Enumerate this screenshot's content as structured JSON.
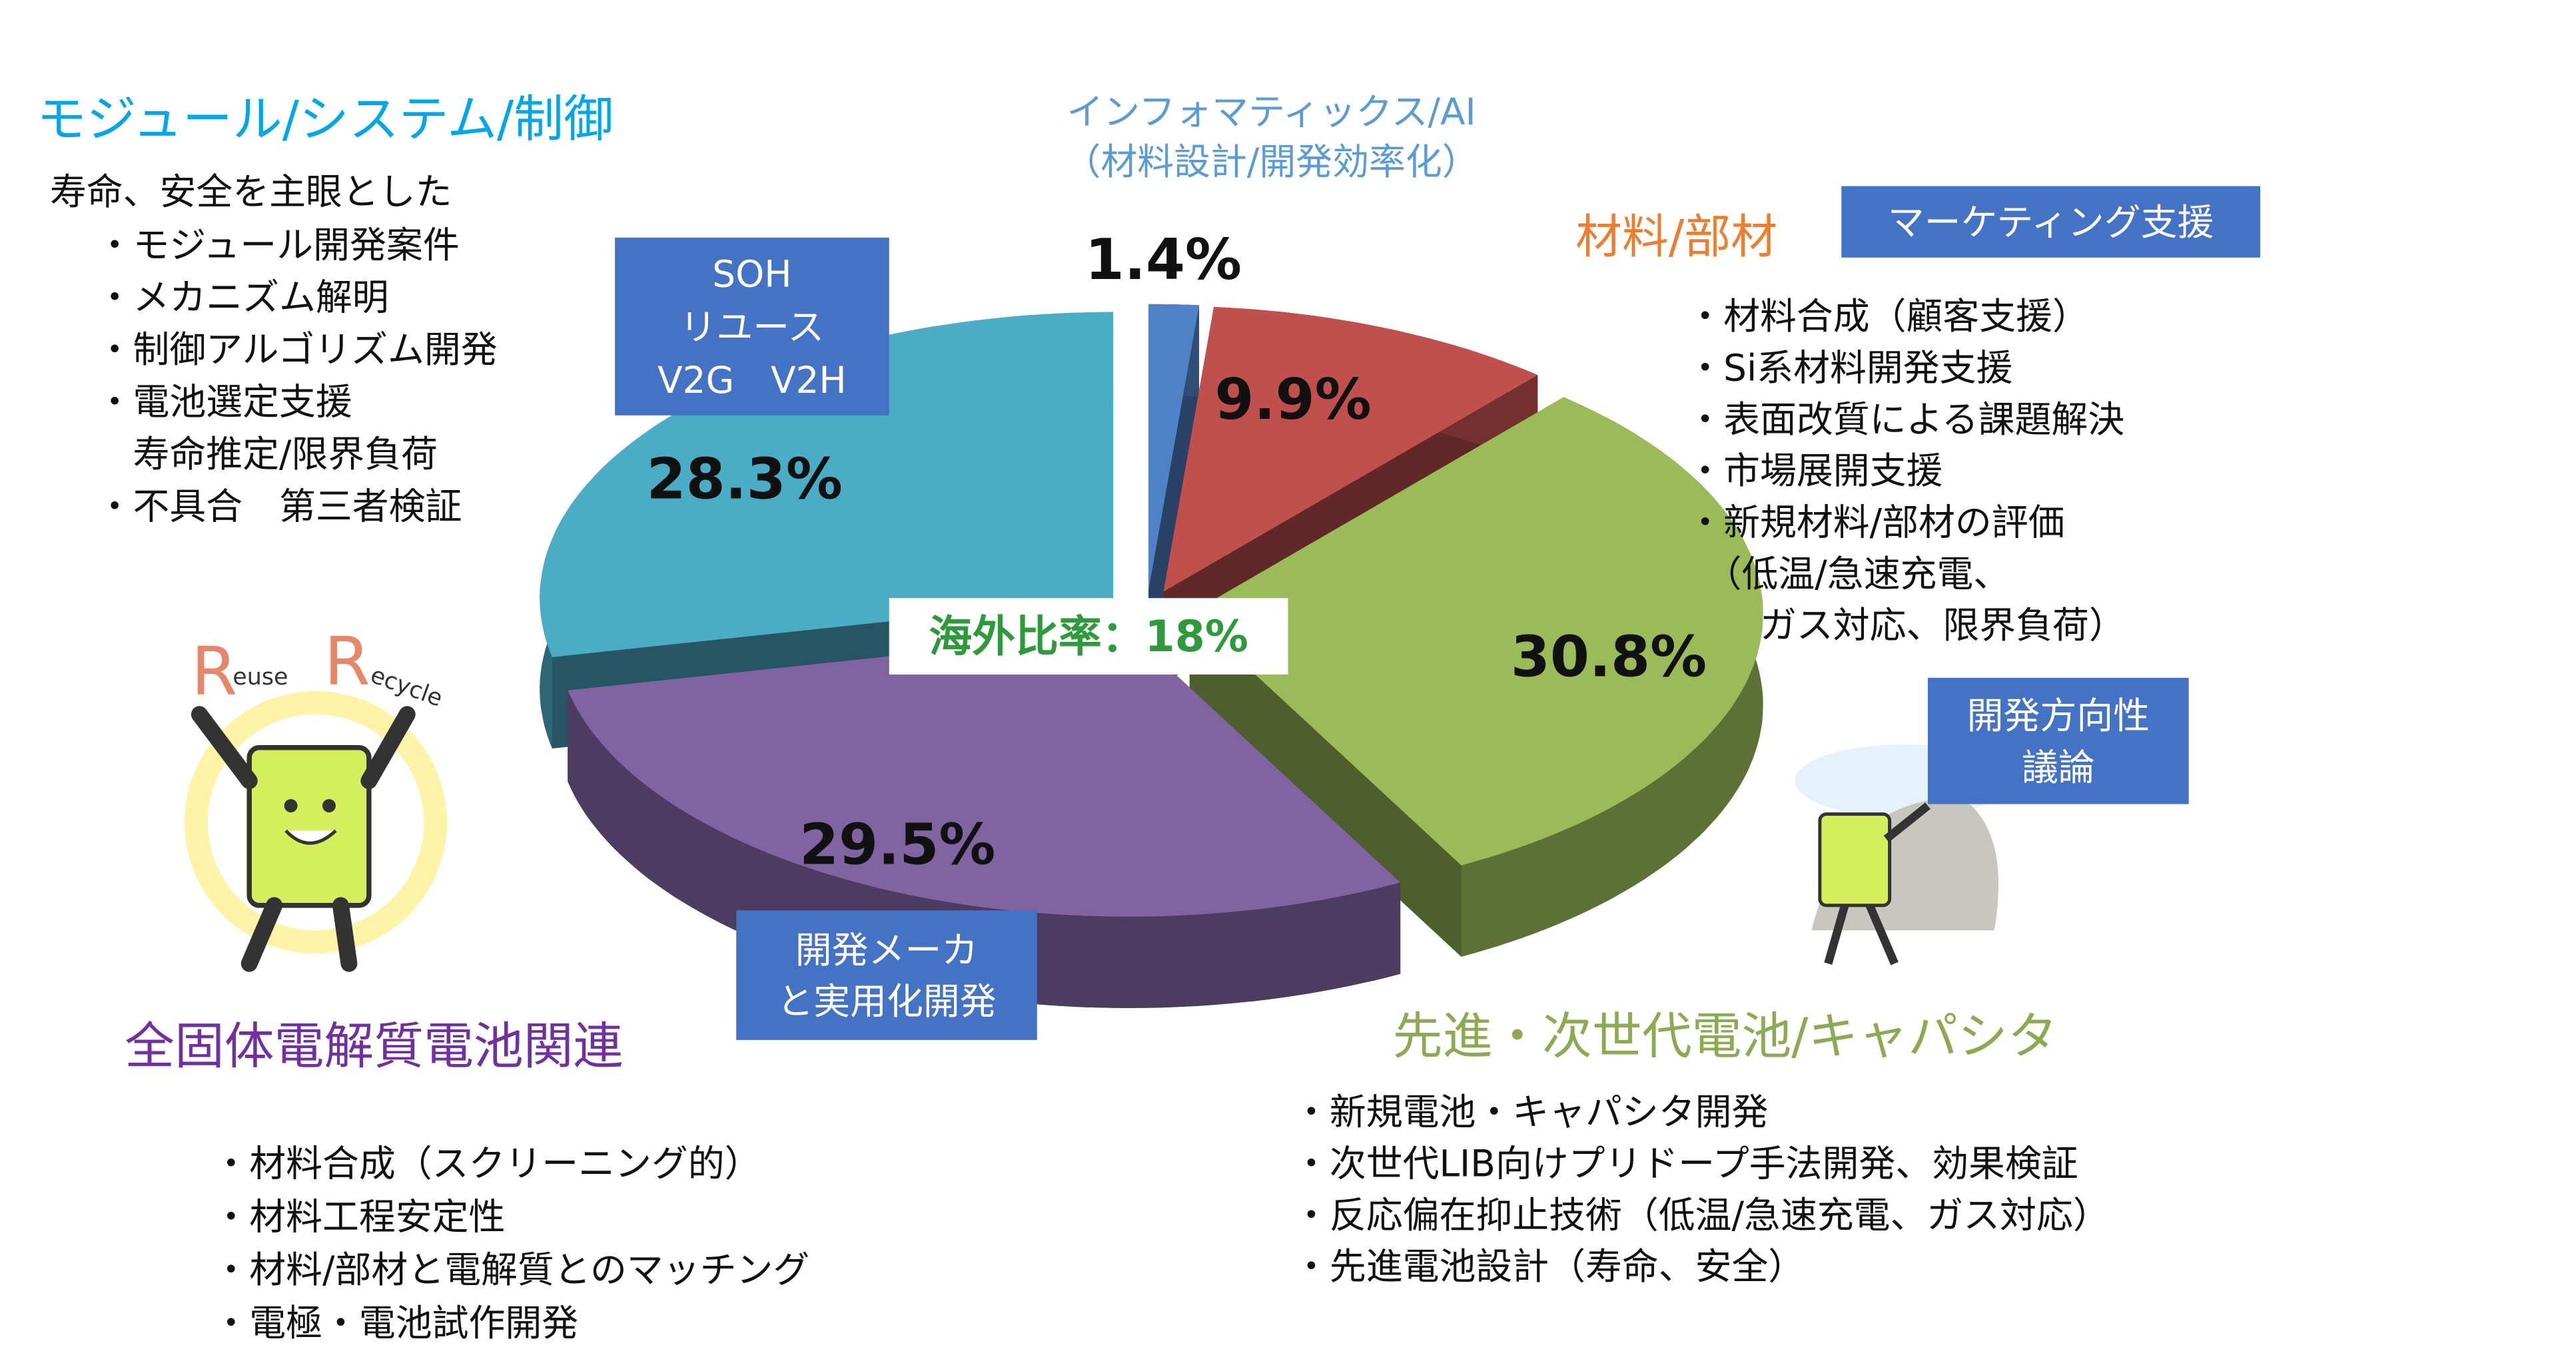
{
  "chart_data": {
    "type": "pie",
    "style": "3d-exploded",
    "categories": [
      "インフォマティックス/AI",
      "材料/部材",
      "先進・次世代電池/キャパシタ",
      "全固体電解質電池関連",
      "モジュール/システム/制御"
    ],
    "values": [
      1.4,
      9.9,
      30.8,
      29.5,
      28.3
    ],
    "value_labels": [
      "1.4%",
      "9.9%",
      "30.8%",
      "29.5%",
      "28.3%"
    ],
    "colors": [
      "#4f81c7",
      "#c0504d",
      "#9bbb59",
      "#8064a2",
      "#4bacc6"
    ],
    "annotation": "海外比率：18%"
  },
  "notes": {
    "informatics_sub": "（材料設計/開発効率化）",
    "module_lead": "寿命、安全を主眼とした",
    "module_items": [
      "・モジュール開発案件",
      "・メカニズム解明",
      "・制御アルゴリズム開発",
      "・電池選定支援",
      "　寿命推定/限界負荷",
      "・不具合　第三者検証"
    ],
    "material_items": [
      "・材料合成（顧客支援）",
      "・Si系材料開発支援",
      "・表面改質による課題解決",
      "・市場展開支援",
      "・新規材料/部材の評価",
      "　（低温/急速充電、",
      "　　ガス対応、限界負荷）"
    ],
    "advanced_items": [
      "・新規電池・キャパシタ開発",
      "・次世代LIB向けプリドープ手法開発、効果検証",
      "・反応偏在抑止技術（低温/急速充電、ガス対応）",
      "・先進電池設計（寿命、安全）"
    ],
    "solid_items": [
      "・材料合成（スクリーニング的）",
      "・材料工程安定性",
      "・材料/部材と電解質とのマッチング",
      "・電極・電池試作開発"
    ],
    "boxes": {
      "soh": [
        "SOH",
        "リユース",
        "V2G　V2H"
      ],
      "marketing": [
        "マーケティング支援"
      ],
      "direction": [
        "開発方向性",
        "議論"
      ],
      "maker": [
        "開発メーカ",
        "と実用化開発"
      ]
    },
    "illustration": [
      "R",
      "euse",
      "R",
      "ecycle"
    ]
  }
}
